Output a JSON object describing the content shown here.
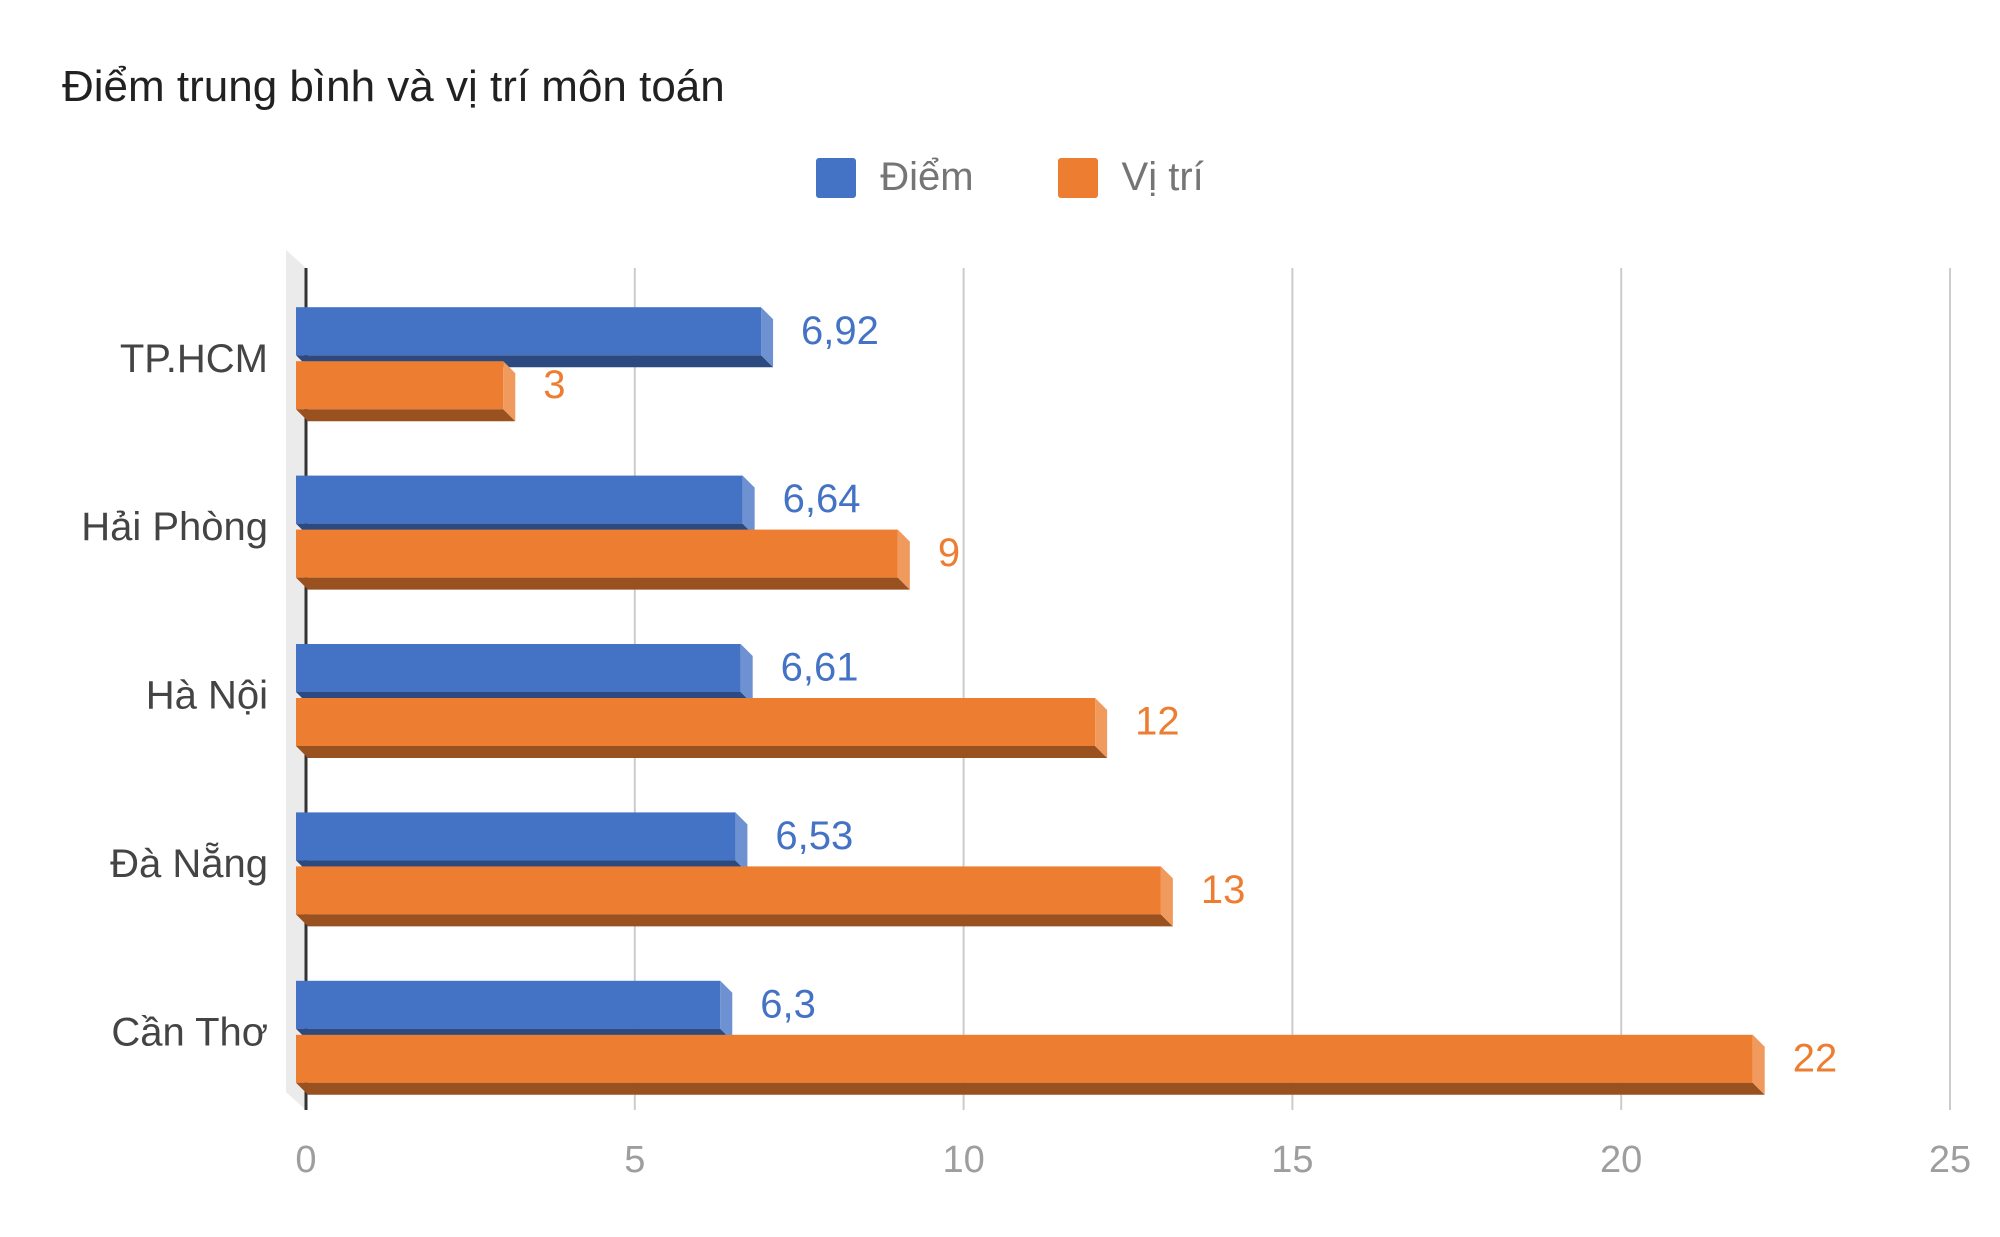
{
  "chart_data": {
    "type": "bar",
    "orientation": "horizontal",
    "title": "Điểm trung bình và vị trí môn toán",
    "categories": [
      "TP.HCM",
      "Hải Phòng",
      "Hà Nội",
      "Đà Nẵng",
      "Cần Thơ"
    ],
    "series": [
      {
        "name": "Điểm",
        "values": [
          6.92,
          6.64,
          6.61,
          6.53,
          6.3
        ],
        "labels": [
          "6,92",
          "6,64",
          "6,61",
          "6,53",
          "6,3"
        ],
        "color": "#4472c4"
      },
      {
        "name": "Vị trí",
        "values": [
          3,
          9,
          12,
          13,
          22
        ],
        "labels": [
          "3",
          "9",
          "12",
          "13",
          "22"
        ],
        "color": "#ed7d31"
      }
    ],
    "xlim": [
      0,
      25
    ],
    "xticks": [
      "0",
      "5",
      "10",
      "15",
      "20",
      "25"
    ],
    "grid": true,
    "legend_position": "top",
    "bar_style": "3d"
  }
}
